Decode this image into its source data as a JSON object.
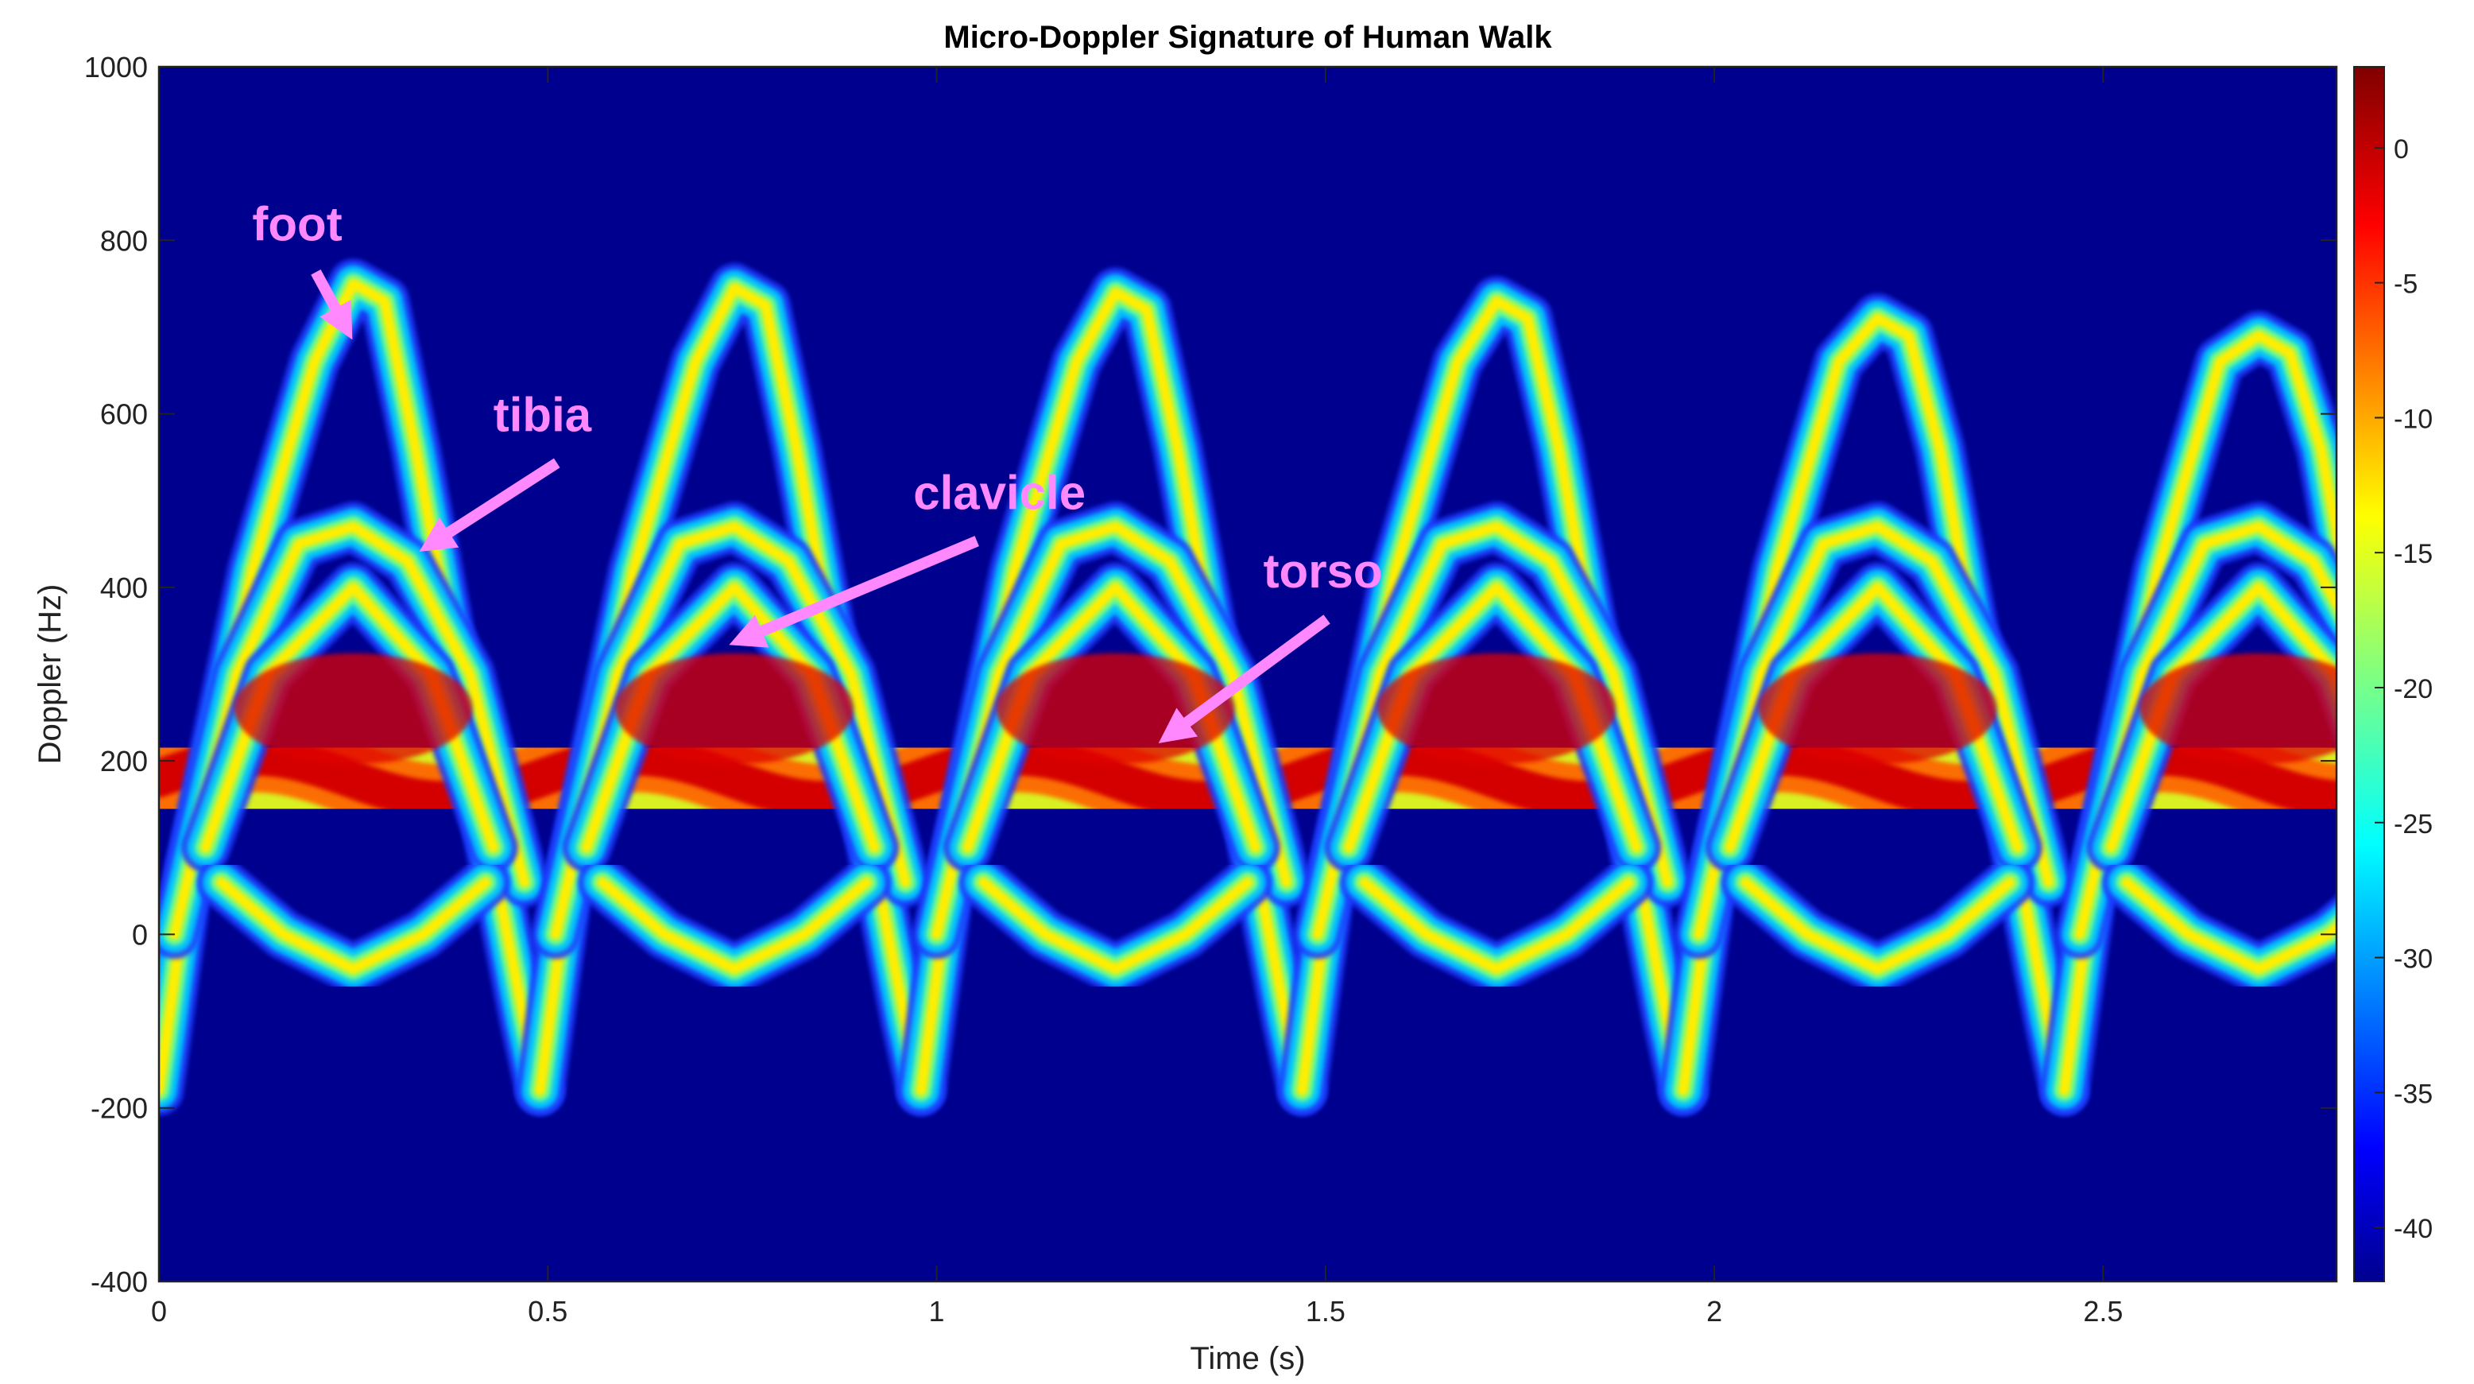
{
  "chart_data": {
    "type": "heatmap",
    "title": "Micro-Doppler Signature of Human Walk",
    "xlabel": "Time (s)",
    "ylabel": "Doppler (Hz)",
    "xlim": [
      0,
      2.8
    ],
    "ylim": [
      -400,
      1000
    ],
    "xticks": [
      0,
      0.5,
      1,
      1.5,
      2,
      2.5
    ],
    "yticks": [
      -400,
      -200,
      0,
      200,
      400,
      600,
      800,
      1000
    ],
    "colorbar": {
      "range": [
        -42,
        3
      ],
      "ticks": [
        0,
        -5,
        -10,
        -15,
        -20,
        -25,
        -30,
        -35,
        -40
      ],
      "colormap": "jet"
    },
    "background_color": "#00008f",
    "grid": false,
    "cycle_period_s": 0.49,
    "cycle_starts_s": [
      0.0,
      0.49,
      0.98,
      1.47,
      1.96,
      2.45
    ],
    "components": [
      {
        "name": "foot",
        "peak_hz": [
          750,
          745,
          740,
          730,
          710,
          690
        ],
        "trough_hz": -180
      },
      {
        "name": "tibia",
        "peak_hz": 470,
        "trough_hz": 0
      },
      {
        "name": "clavicle",
        "peak_hz": 400,
        "trough_hz": 100
      },
      {
        "name": "torso",
        "center_hz": 180,
        "range_hz": [
          60,
          320
        ]
      }
    ],
    "annotations": [
      {
        "text": "foot",
        "x": 0.12,
        "y": 800
      },
      {
        "text": "tibia",
        "x": 0.43,
        "y": 580
      },
      {
        "text": "clavicle",
        "x": 0.97,
        "y": 490
      },
      {
        "text": "torso",
        "x": 1.42,
        "y": 400
      }
    ],
    "annotation_color": "#ff88ff"
  }
}
